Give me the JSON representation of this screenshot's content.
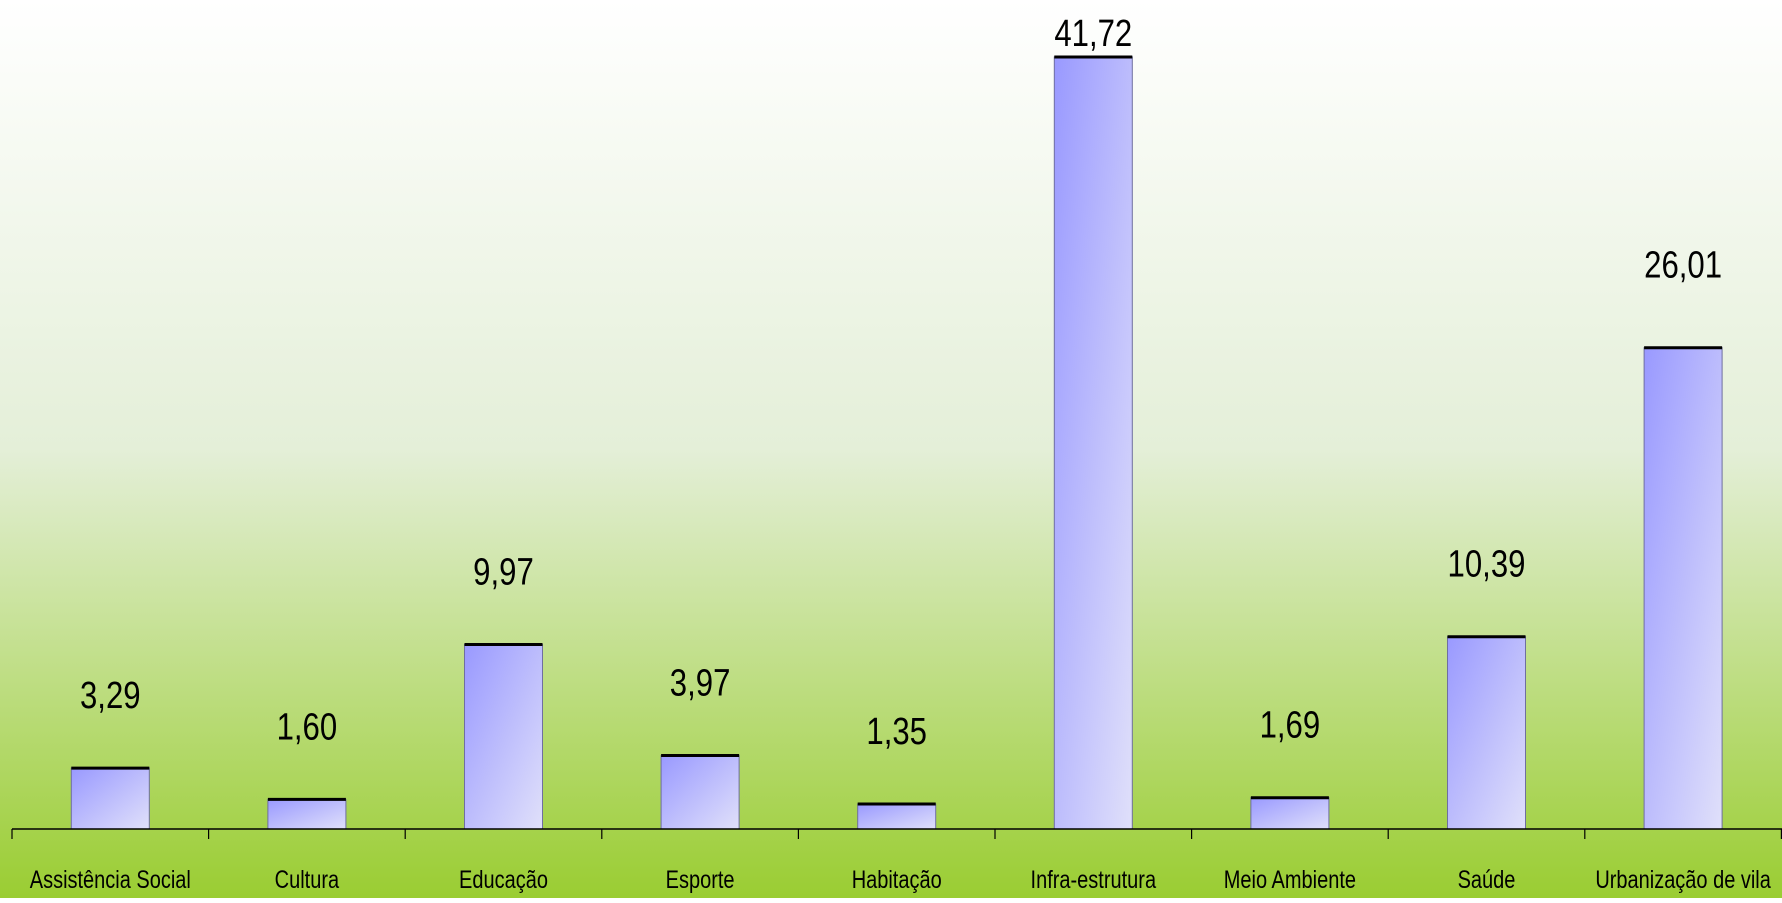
{
  "chart_data": {
    "type": "bar",
    "title": "",
    "xlabel": "",
    "ylabel": "",
    "categories": [
      "Assistência Social",
      "Cultura",
      "Educação",
      "Esporte",
      "Habitação",
      "Infra-estrutura",
      "Meio Ambiente",
      "Saúde",
      "Urbanização de  vila"
    ],
    "values": [
      3.29,
      1.6,
      9.97,
      3.97,
      1.35,
      41.72,
      1.69,
      10.39,
      26.01
    ],
    "data_labels": [
      "3,29",
      "1,60",
      "9,97",
      "3,97",
      "1,35",
      "41,72",
      "1,69",
      "10,39",
      "26,01"
    ],
    "ylim": [
      0,
      41.72
    ],
    "grid": false,
    "legend": "none",
    "colors": {
      "background_top": "#ffffff",
      "background_bottom": "#9acd32",
      "bar_dark": "#9999ff",
      "bar_light": "#e0e0fa",
      "bar_outline": "#000000",
      "axis": "#000000"
    }
  }
}
